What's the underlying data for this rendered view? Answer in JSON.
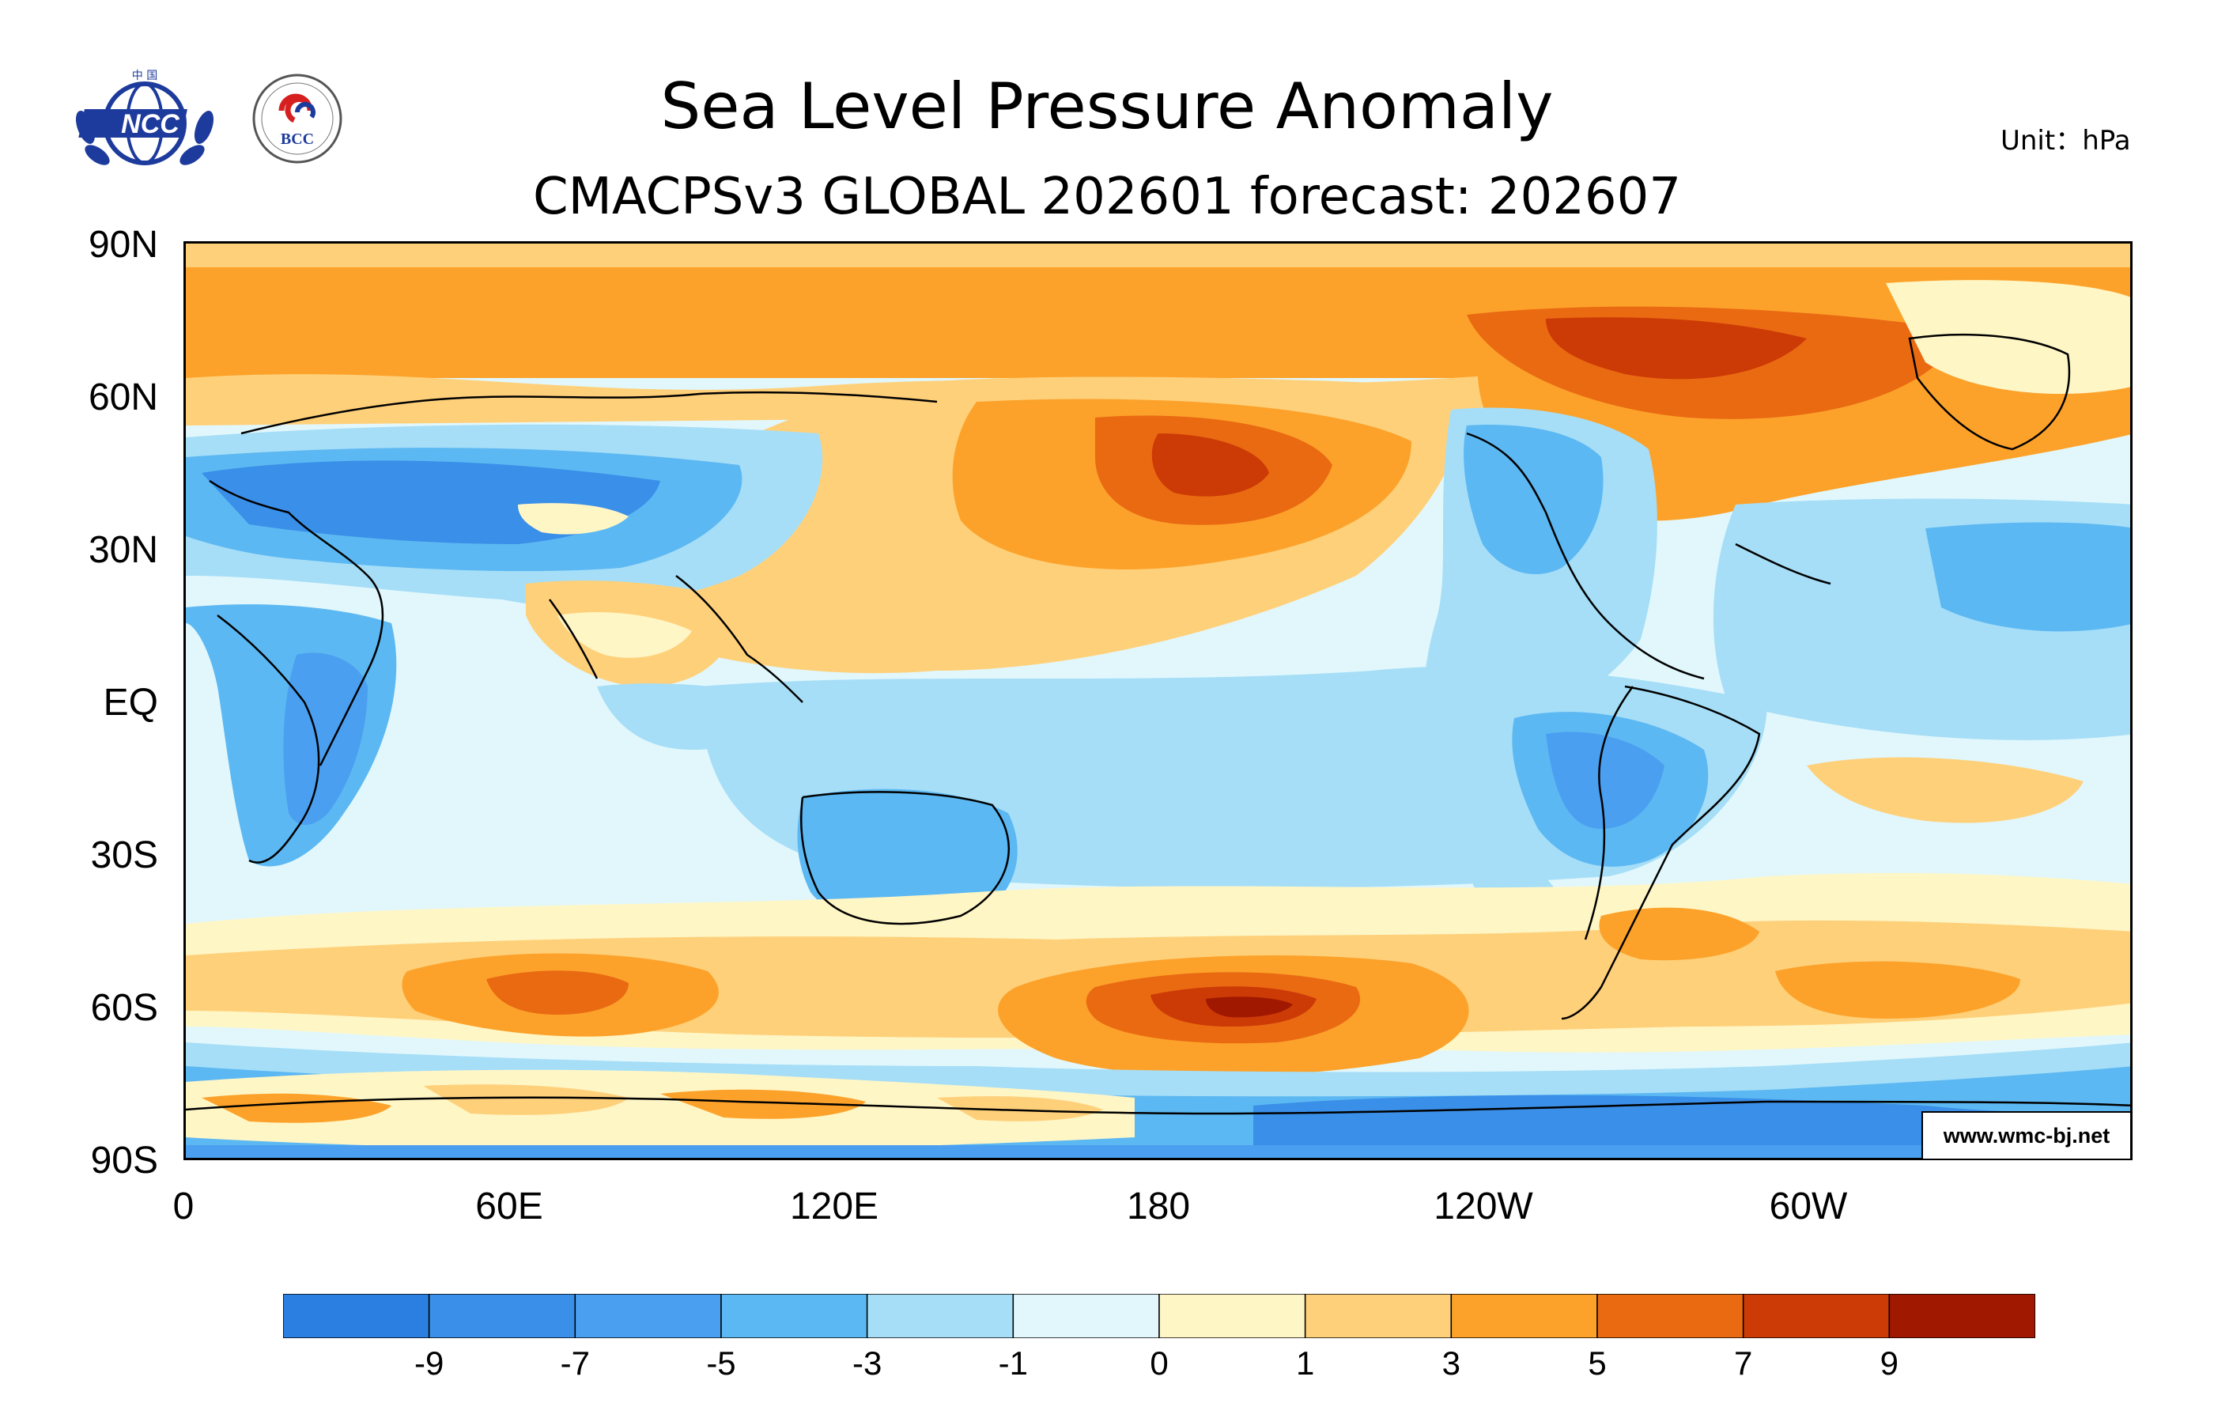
{
  "title": "Sea Level Pressure Anomaly",
  "subtitle": "CMACPSv3 GLOBAL 202601 forecast: 202607",
  "unit": "Unit：hPa",
  "watermark": "www.wmc-bj.net",
  "logos": {
    "ncc": {
      "text": "NCC",
      "top_text": "中 国",
      "icon": "ncc-globe-laurel-logo"
    },
    "bcc": {
      "text": "BCC",
      "icon": "bcc-seal-logo"
    }
  },
  "map": {
    "lat_labels": [
      "90N",
      "60N",
      "30N",
      "EQ",
      "30S",
      "60S",
      "90S"
    ],
    "lon_labels": [
      "0",
      "60E",
      "120E",
      "180",
      "120W",
      "60W"
    ]
  },
  "colorbar": {
    "tick_labels": [
      "-9",
      "-7",
      "-5",
      "-3",
      "-1",
      "0",
      "1",
      "3",
      "5",
      "7",
      "9"
    ],
    "colors": [
      "#2a7fe0",
      "#3a8fe8",
      "#4b9ff0",
      "#5cb8f2",
      "#a6def7",
      "#e1f7fc",
      "#fff6c6",
      "#ffd07a",
      "#fca22a",
      "#ea6a12",
      "#cc3a06",
      "#a01800"
    ]
  },
  "chart_data": {
    "type": "heatmap",
    "title": "Sea Level Pressure Anomaly",
    "subtitle": "CMACPSv3 GLOBAL 202601 forecast: 202607",
    "unit": "hPa",
    "xlim": [
      0,
      360
    ],
    "ylim": [
      -90,
      90
    ],
    "contour_levels": [
      -9,
      -7,
      -5,
      -3,
      -1,
      0,
      1,
      3,
      5,
      7,
      9
    ],
    "xticks": [
      "0",
      "60E",
      "120E",
      "180",
      "120W",
      "60W"
    ],
    "yticks": [
      "90N",
      "60N",
      "30N",
      "EQ",
      "30S",
      "60S",
      "90S"
    ]
  }
}
